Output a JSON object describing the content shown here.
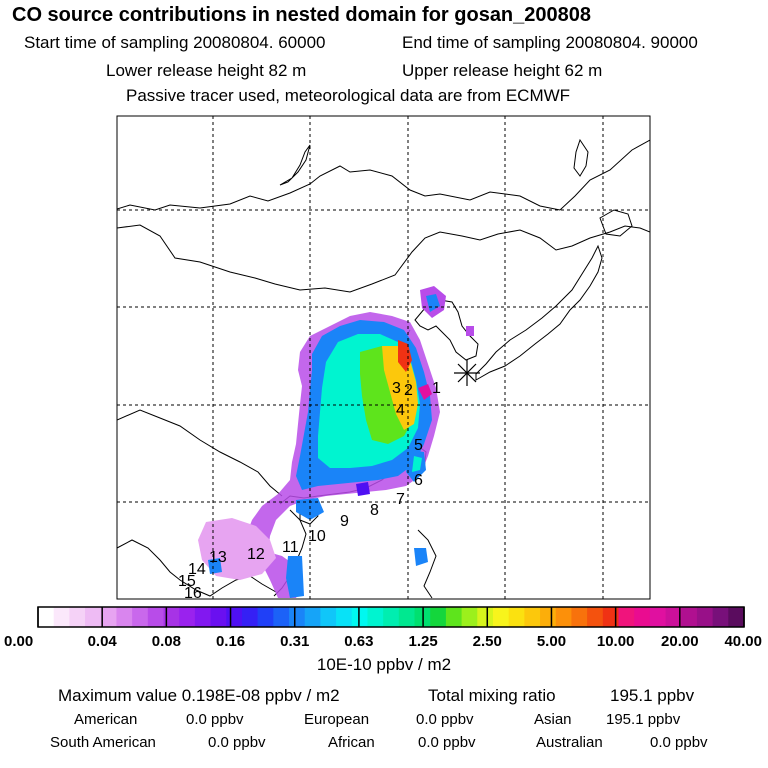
{
  "header": {
    "title": "CO  source contributions in nested domain for gosan_200808",
    "start_label": "Start time of sampling 20080804. 60000",
    "end_label": "End time of sampling 20080804. 90000",
    "lower_label": "Lower release height   82 m",
    "upper_label": "Upper release height   62 m",
    "note": "Passive tracer used, meteorological data are from ECMWF"
  },
  "chart_data": {
    "type": "heatmap",
    "title": "CO  source contributions in nested domain for gosan_200808",
    "colorbar": {
      "tick_labels": [
        "0.00",
        "0.04",
        "0.08",
        "0.16",
        "0.31",
        "0.63",
        "1.25",
        "2.50",
        "5.00",
        "10.00",
        "20.00",
        "40.00"
      ],
      "unit_label": "10E-10 ppbv / m2",
      "colors": [
        "#ffffff",
        "#fbe8fb",
        "#f5d2f7",
        "#eebbf4",
        "#e7a4f1",
        "#d985ee",
        "#c968ec",
        "#b84ce9",
        "#a733e6",
        "#9a22ee",
        "#8218f0",
        "#6a10f0",
        "#4f10f3",
        "#3520f5",
        "#2040f7",
        "#1c62f7",
        "#1a84f8",
        "#16a4f8",
        "#10c6f9",
        "#08e2f7",
        "#00f8f0",
        "#00f4d0",
        "#00eeb0",
        "#00e890",
        "#00e070",
        "#14d63c",
        "#5ee41c",
        "#9cf01c",
        "#d6f41c",
        "#f8f41c",
        "#fbe110",
        "#fcc80c",
        "#fcae0a",
        "#fc900a",
        "#f8720c",
        "#f4520e",
        "#f03214",
        "#f0147c",
        "#ea0c90",
        "#e010a0",
        "#cc109a",
        "#b01090",
        "#981088",
        "#78107a",
        "#5a0c5e"
      ]
    },
    "source_numbers": [
      "1",
      "2",
      "3",
      "4",
      "5",
      "6",
      "7",
      "8",
      "9",
      "10",
      "11",
      "12",
      "13",
      "14",
      "15",
      "16"
    ],
    "receptor": "asterisk marker"
  },
  "stats": {
    "max_label": "Maximum value  0.198E-08 ppbv / m2",
    "total_label": "Total mixing ratio",
    "total_value": "195.1 ppbv",
    "rows": [
      {
        "name": "American",
        "value": "0.0 ppbv"
      },
      {
        "name": "European",
        "value": "0.0 ppbv"
      },
      {
        "name": "Asian",
        "value": "195.1 ppbv"
      },
      {
        "name": "South American",
        "value": "0.0 ppbv"
      },
      {
        "name": "African",
        "value": "0.0 ppbv"
      },
      {
        "name": "Australian",
        "value": "0.0 ppbv"
      }
    ]
  }
}
